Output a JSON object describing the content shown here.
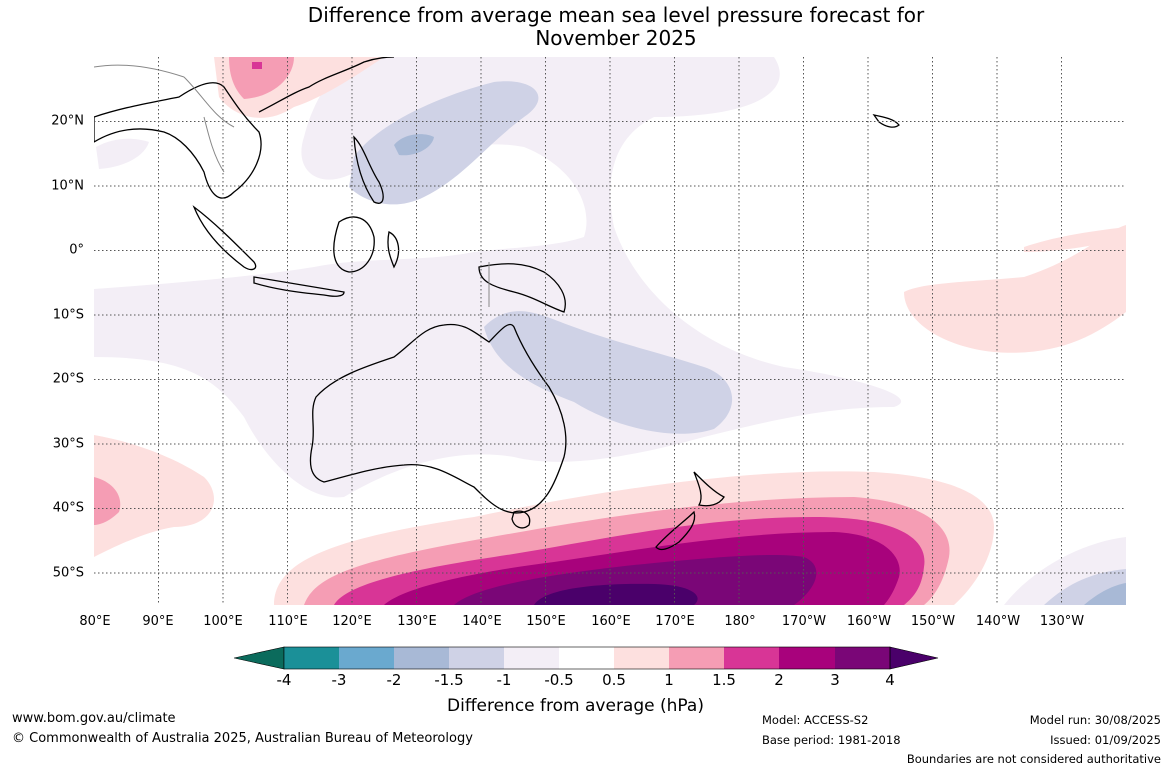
{
  "title_line1": "Difference from average mean sea level pressure forecast for",
  "title_line2": "November 2025",
  "lon_labels": [
    "80°E",
    "90°E",
    "100°E",
    "110°E",
    "120°E",
    "130°E",
    "140°E",
    "150°E",
    "160°E",
    "170°E",
    "180°",
    "170°W",
    "160°W",
    "150°W",
    "140°W",
    "130°W"
  ],
  "lat_labels": [
    "20°N",
    "10°N",
    "0°",
    "10°S",
    "20°S",
    "30°S",
    "40°S",
    "50°S"
  ],
  "colorbar": {
    "title": "Difference from average (hPa)",
    "ticks": [
      "-4",
      "-3",
      "-2",
      "-1.5",
      "-1",
      "-0.5",
      "0.5",
      "1",
      "1.5",
      "2",
      "3",
      "4"
    ],
    "colors": [
      "#0b6b5c",
      "#1b9098",
      "#6aa9cf",
      "#a8b9d6",
      "#cfd2e6",
      "#f3eef6",
      "#ffffff",
      "#fde0df",
      "#f59db4",
      "#d83596",
      "#a8027c",
      "#7a0677",
      "#4a006a"
    ]
  },
  "footer": {
    "website": "www.bom.gov.au/climate",
    "copyright": "© Commonwealth of Australia 2025, Australian Bureau of Meteorology",
    "model": "Model: ACCESS-S2",
    "base_period": "Base period: 1981-2018",
    "model_run": "Model run: 30/08/2025",
    "issued": "Issued: 01/09/2025",
    "disclaimer": "Boundaries are not considered authoritative"
  }
}
